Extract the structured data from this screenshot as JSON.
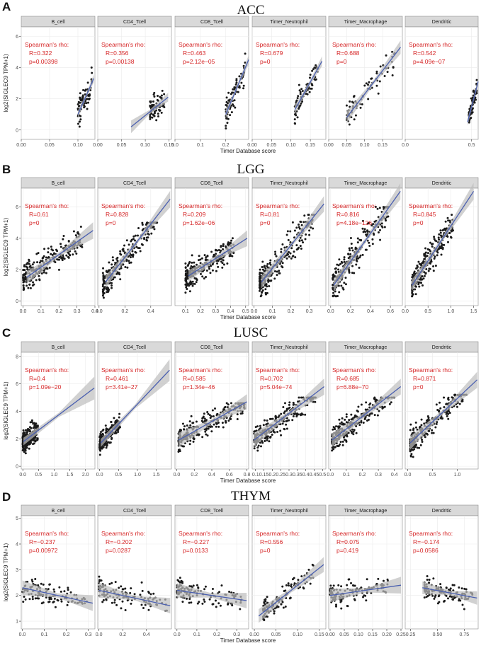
{
  "figure": {
    "xlabel": "Timer Database score",
    "ylabel": "log2(SIGLEC9 TPM+1)",
    "stat_header": "Spearman's rho:",
    "colors": {
      "points": "#1a1a1a",
      "fit_line": "#4a5fb0",
      "ci_band": "#bdbdbd",
      "stats": "#d62728",
      "strip": "#d9d9d9",
      "panel_bg": "#ffffff",
      "grid": "#ebebeb"
    }
  },
  "chart_data": [
    {
      "type": "scatter",
      "letter": "A",
      "title": "ACC",
      "ylim": [
        -0.6,
        6.6
      ],
      "yticks": [
        0,
        2,
        4,
        6
      ],
      "ytick_labels": [
        "0",
        "2",
        "4",
        "6"
      ],
      "facets": [
        {
          "name": "B_cell",
          "xlim": [
            0,
            0.13
          ],
          "xticks": [
            0,
            0.05,
            0.1
          ],
          "xtick_labels": [
            "0.00",
            "0.05",
            "0.10"
          ],
          "R": "R=0.322",
          "p": "p=0.00398",
          "fit": [
            [
              0.1,
              1.0
            ],
            [
              0.128,
              3.3
            ]
          ],
          "cloud": {
            "x": [
              0.1,
              0.125
            ],
            "y": [
              0.1,
              5.0
            ],
            "n": 75
          }
        },
        {
          "name": "CD4_Tcell",
          "xlim": [
            0,
            0.155
          ],
          "xticks": [
            0,
            0.05,
            0.1,
            0.15
          ],
          "xtick_labels": [
            "0.00",
            "0.05",
            "0.10",
            "0.15"
          ],
          "R": "R=0.356",
          "p": "p=0.00138",
          "fit": [
            [
              0.07,
              0.2
            ],
            [
              0.148,
              2.1
            ]
          ],
          "cloud": {
            "x": [
              0.11,
              0.14
            ],
            "y": [
              0.1,
              4.7
            ],
            "n": 75
          }
        },
        {
          "name": "CD8_Tcell",
          "xlim": [
            0,
            0.29
          ],
          "xticks": [
            0,
            0.1,
            0.2
          ],
          "xtick_labels": [
            "0.0",
            "0.1",
            "0.2"
          ],
          "R": "R=0.463",
          "p": "p=2.12e−05",
          "fit": [
            [
              0.2,
              1.0
            ],
            [
              0.29,
              4.5
            ]
          ],
          "cloud": {
            "x": [
              0.2,
              0.28
            ],
            "y": [
              0.1,
              5.0
            ],
            "n": 75
          }
        },
        {
          "name": "Timer_Neutrophil",
          "xlim": [
            0,
            0.19
          ],
          "xticks": [
            0,
            0.05,
            0.1,
            0.15
          ],
          "xtick_labels": [
            "0.00",
            "0.05",
            "0.10",
            "0.15"
          ],
          "R": "R=0.679",
          "p": "p=0",
          "fit": [
            [
              0.11,
              1.3
            ],
            [
              0.18,
              4.4
            ]
          ],
          "cloud": {
            "x": [
              0.11,
              0.17
            ],
            "y": [
              0.1,
              4.6
            ],
            "n": 75
          }
        },
        {
          "name": "Timer_Macrophage",
          "xlim": [
            0,
            0.205
          ],
          "xticks": [
            0,
            0.05,
            0.1,
            0.15
          ],
          "xtick_labels": [
            "0.00",
            "0.05",
            "0.10",
            "0.15"
          ],
          "R": "R=0.688",
          "p": "p=0",
          "fit": [
            [
              0.05,
              0.8
            ],
            [
              0.2,
              5.3
            ]
          ],
          "cloud": {
            "x": [
              0.05,
              0.19
            ],
            "y": [
              0.1,
              5.0
            ],
            "n": 75
          }
        },
        {
          "name": "Dendritic",
          "xlim": [
            0,
            0.55
          ],
          "xticks": [
            0,
            0.5
          ],
          "xtick_labels": [
            "0.0",
            "0.5"
          ],
          "R": "R=0.542",
          "p": "p=4.09e−07",
          "fit": [
            [
              0.47,
              0.5
            ],
            [
              0.55,
              3.1
            ]
          ],
          "cloud": {
            "x": [
              0.48,
              0.54
            ],
            "y": [
              0.1,
              3.2
            ],
            "n": 75
          }
        }
      ]
    },
    {
      "type": "scatter",
      "letter": "B",
      "title": "LGG",
      "ylim": [
        -0.3,
        7.2
      ],
      "yticks": [
        0,
        2,
        4,
        6
      ],
      "ytick_labels": [
        "0",
        "2",
        "4",
        "6"
      ],
      "facets": [
        {
          "name": "B_cell",
          "xlim": [
            -0.01,
            0.4
          ],
          "xticks": [
            0,
            0.1,
            0.2,
            0.3,
            0.4
          ],
          "xtick_labels": [
            "0.0",
            "0.1",
            "0.2",
            "0.3",
            "0.4"
          ],
          "R": "R=0.61",
          "p": "p=0",
          "fit": [
            [
              0.02,
              1.5
            ],
            [
              0.39,
              4.5
            ]
          ],
          "cloud": {
            "x": [
              0.0,
              0.33
            ],
            "y": [
              0.2,
              4.8
            ],
            "n": 250
          }
        },
        {
          "name": "CD4_Tcell",
          "xlim": [
            -0.01,
            0.56
          ],
          "xticks": [
            0,
            0.2,
            0.4
          ],
          "xtick_labels": [
            "0.0",
            "0.2",
            "0.4"
          ],
          "R": "R=0.828",
          "p": "p=0",
          "fit": [
            [
              0.05,
              1.2
            ],
            [
              0.55,
              6.5
            ]
          ],
          "cloud": {
            "x": [
              0.03,
              0.45
            ],
            "y": [
              0.2,
              5.0
            ],
            "n": 250
          }
        },
        {
          "name": "CD8_Tcell",
          "xlim": [
            0.03,
            0.52
          ],
          "xticks": [
            0.1,
            0.2,
            0.3,
            0.4,
            0.5
          ],
          "xtick_labels": [
            "0.1",
            "0.2",
            "0.3",
            "0.4",
            "0.5"
          ],
          "R": "R=0.209",
          "p": "p=1.62e−06",
          "fit": [
            [
              0.12,
              1.6
            ],
            [
              0.51,
              4.0
            ]
          ],
          "cloud": {
            "x": [
              0.1,
              0.42
            ],
            "y": [
              0.2,
              4.6
            ],
            "n": 250
          }
        },
        {
          "name": "Timer_Neutrophil",
          "xlim": [
            -0.01,
            0.39
          ],
          "xticks": [
            0,
            0.1,
            0.2,
            0.3
          ],
          "xtick_labels": [
            "0.0",
            "0.1",
            "0.2",
            "0.3"
          ],
          "R": "R=0.81",
          "p": "p=0",
          "fit": [
            [
              0.04,
              1.2
            ],
            [
              0.38,
              6.2
            ]
          ],
          "cloud": {
            "x": [
              0.03,
              0.33
            ],
            "y": [
              0.3,
              5.5
            ],
            "n": 250
          }
        },
        {
          "name": "Timer_Macrophage",
          "xlim": [
            -0.02,
            0.72
          ],
          "xticks": [
            0,
            0.2,
            0.4,
            0.6
          ],
          "xtick_labels": [
            "0.0",
            "0.2",
            "0.4",
            "0.6"
          ],
          "R": "R=0.816",
          "p": "p=4.18e−126",
          "fit": [
            [
              0.03,
              1.0
            ],
            [
              0.7,
              7.0
            ]
          ],
          "cloud": {
            "x": [
              0.02,
              0.58
            ],
            "y": [
              0.3,
              6.0
            ],
            "n": 250
          }
        },
        {
          "name": "Dendritic",
          "xlim": [
            0.0,
            1.6
          ],
          "xticks": [
            0,
            0.5,
            1.0,
            1.5
          ],
          "xtick_labels": [
            "0.0",
            "0.5",
            "1.0",
            "1.5"
          ],
          "R": "R=0.845",
          "p": "p=0",
          "fit": [
            [
              0.15,
              1.0
            ],
            [
              1.5,
              7.0
            ]
          ],
          "cloud": {
            "x": [
              0.15,
              1.05
            ],
            "y": [
              0.3,
              5.5
            ],
            "n": 250
          }
        }
      ]
    },
    {
      "type": "scatter",
      "letter": "C",
      "title": "LUSC",
      "ylim": [
        -0.2,
        8.3
      ],
      "yticks": [
        0,
        2,
        4,
        6,
        8
      ],
      "ytick_labels": [
        "0",
        "2",
        "4",
        "6",
        "8"
      ],
      "facets": [
        {
          "name": "B_cell",
          "xlim": [
            -0.05,
            2.3
          ],
          "xticks": [
            0,
            0.5,
            1.0,
            1.5,
            2.0
          ],
          "xtick_labels": [
            "0.0",
            "0.5",
            "1.0",
            "1.5",
            "2.0"
          ],
          "R": "R=0.4",
          "p": "p=1.09e−20",
          "fit": [
            [
              0.02,
              1.8
            ],
            [
              2.28,
              5.7
            ]
          ],
          "cloud": {
            "x": [
              0.0,
              0.5
            ],
            "y": [
              0.1,
              4.2
            ],
            "n": 250
          }
        },
        {
          "name": "CD4_Tcell",
          "xlim": [
            -0.05,
            1.9
          ],
          "xticks": [
            0,
            0.5,
            1.0,
            1.5
          ],
          "xtick_labels": [
            "0.0",
            "0.5",
            "1.0",
            "1.5"
          ],
          "R": "R=0.461",
          "p": "p=3.41e−27",
          "fit": [
            [
              0.03,
              1.7
            ],
            [
              1.85,
              7.0
            ]
          ],
          "cloud": {
            "x": [
              0.0,
              0.55
            ],
            "y": [
              0.1,
              4.0
            ],
            "n": 250
          }
        },
        {
          "name": "CD8_Tcell",
          "xlim": [
            -0.02,
            0.82
          ],
          "xticks": [
            0,
            0.2,
            0.4,
            0.6,
            0.8
          ],
          "xtick_labels": [
            "0.0",
            "0.2",
            "0.4",
            "0.6",
            "0.8"
          ],
          "R": "R=0.585",
          "p": "p=1.34e−46",
          "fit": [
            [
              0.02,
              1.9
            ],
            [
              0.8,
              4.7
            ]
          ],
          "cloud": {
            "x": [
              0.02,
              0.78
            ],
            "y": [
              0.1,
              4.6
            ],
            "n": 250
          }
        },
        {
          "name": "Timer_Neutrophil",
          "xlim": [
            0.08,
            0.52
          ],
          "xticks": [
            0.1,
            0.15,
            0.2,
            0.25,
            0.3,
            0.35,
            0.4,
            0.45,
            0.5
          ],
          "xtick_labels": [
            "0.1",
            "0.15",
            "0.2",
            "0.25",
            "0.3",
            "0.35",
            "0.4",
            "0.45",
            "0.5"
          ],
          "R": "R=0.702",
          "p": "p=5.04e−74",
          "fit": [
            [
              0.09,
              1.9
            ],
            [
              0.51,
              5.8
            ]
          ],
          "cloud": {
            "x": [
              0.09,
              0.46
            ],
            "y": [
              0.3,
              5.0
            ],
            "n": 250
          }
        },
        {
          "name": "Timer_Macrophage",
          "xlim": [
            -0.01,
            0.45
          ],
          "xticks": [
            0,
            0.1,
            0.2,
            0.3,
            0.4
          ],
          "xtick_labels": [
            "0.0",
            "0.1",
            "0.2",
            "0.3",
            "0.4"
          ],
          "R": "R=0.685",
          "p": "p=6.88e−70",
          "fit": [
            [
              0.01,
              1.9
            ],
            [
              0.44,
              5.8
            ]
          ],
          "cloud": {
            "x": [
              0.01,
              0.4
            ],
            "y": [
              0.2,
              5.0
            ],
            "n": 250
          }
        },
        {
          "name": "Dendritic",
          "xlim": [
            -0.05,
            1.42
          ],
          "xticks": [
            0,
            0.5,
            1.0
          ],
          "xtick_labels": [
            "0.0",
            "0.5",
            "1.0"
          ],
          "R": "R=0.871",
          "p": "p=0",
          "fit": [
            [
              0.05,
              1.7
            ],
            [
              1.4,
              6.3
            ]
          ],
          "cloud": {
            "x": [
              0.05,
              1.2
            ],
            "y": [
              0.3,
              5.2
            ],
            "n": 250
          }
        }
      ]
    },
    {
      "type": "scatter",
      "letter": "D",
      "title": "THYM",
      "ylim": [
        0.7,
        5.1
      ],
      "yticks": [
        1,
        2,
        3,
        4,
        5
      ],
      "ytick_labels": [
        "1",
        "2",
        "3",
        "4",
        "5"
      ],
      "facets": [
        {
          "name": "B_cell",
          "xlim": [
            -0.005,
            0.33
          ],
          "xticks": [
            0,
            0.1,
            0.2,
            0.3
          ],
          "xtick_labels": [
            "0.0",
            "0.1",
            "0.2",
            "0.3"
          ],
          "R": "R=−0.237",
          "p": "p=0.00972",
          "fit": [
            [
              0.0,
              2.3
            ],
            [
              0.32,
              1.7
            ]
          ],
          "cloud": {
            "x": [
              0.0,
              0.3
            ],
            "y": [
              0.9,
              3.3
            ],
            "n": 120
          }
        },
        {
          "name": "CD4_Tcell",
          "xlim": [
            -0.01,
            0.61
          ],
          "xticks": [
            0,
            0.2,
            0.4
          ],
          "xtick_labels": [
            "0.0",
            "0.2",
            "0.4"
          ],
          "R": "R=−0.202",
          "p": "p=0.0287",
          "fit": [
            [
              0.0,
              2.2
            ],
            [
              0.6,
              1.6
            ]
          ],
          "cloud": {
            "x": [
              0.0,
              0.58
            ],
            "y": [
              0.9,
              3.3
            ],
            "n": 120
          }
        },
        {
          "name": "CD8_Tcell",
          "xlim": [
            -0.01,
            0.36
          ],
          "xticks": [
            0,
            0.1,
            0.2,
            0.3
          ],
          "xtick_labels": [
            "0.0",
            "0.1",
            "0.2",
            "0.3"
          ],
          "R": "R=−0.227",
          "p": "p=0.0133",
          "fit": [
            [
              0.0,
              2.2
            ],
            [
              0.35,
              1.8
            ]
          ],
          "cloud": {
            "x": [
              0.0,
              0.33
            ],
            "y": [
              0.9,
              3.3
            ],
            "n": 120
          }
        },
        {
          "name": "Timer_Neutrophil",
          "xlim": [
            -0.005,
            0.165
          ],
          "xticks": [
            0,
            0.05,
            0.1,
            0.15
          ],
          "xtick_labels": [
            "0.00",
            "0.05",
            "0.10",
            "0.15"
          ],
          "R": "R=0.556",
          "p": "p=0",
          "fit": [
            [
              0.01,
              1.2
            ],
            [
              0.16,
              3.2
            ]
          ],
          "cloud": {
            "x": [
              0.02,
              0.14
            ],
            "y": [
              0.9,
              3.4
            ],
            "n": 120
          }
        },
        {
          "name": "Timer_Macrophage",
          "xlim": [
            -0.005,
            0.255
          ],
          "xticks": [
            0,
            0.05,
            0.1,
            0.15,
            0.2,
            0.25
          ],
          "xtick_labels": [
            "0.00",
            "0.05",
            "0.10",
            "0.15",
            "0.20",
            "0.25"
          ],
          "R": "R=0.075",
          "p": "p=0.419",
          "fit": [
            [
              0.0,
              2.0
            ],
            [
              0.25,
              2.4
            ]
          ],
          "cloud": {
            "x": [
              0.0,
              0.21
            ],
            "y": [
              0.9,
              3.4
            ],
            "n": 120
          }
        },
        {
          "name": "Dendritic",
          "xlim": [
            0.2,
            0.88
          ],
          "xticks": [
            0.25,
            0.5,
            0.75
          ],
          "xtick_labels": [
            "0.25",
            "0.50",
            "0.75"
          ],
          "R": "R=−0.174",
          "p": "p=0.0586",
          "fit": [
            [
              0.36,
              2.3
            ],
            [
              0.87,
              1.9
            ]
          ],
          "cloud": {
            "x": [
              0.38,
              0.83
            ],
            "y": [
              0.9,
              3.3
            ],
            "n": 120
          }
        }
      ]
    }
  ]
}
